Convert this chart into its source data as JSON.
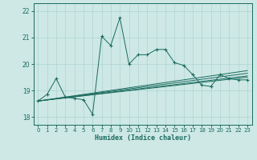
{
  "xlabel": "Humidex (Indice chaleur)",
  "bg_color": "#cde8e5",
  "line_color": "#1a6b5e",
  "grid_color": "#afd4d0",
  "xlim": [
    -0.5,
    23.5
  ],
  "ylim": [
    17.7,
    22.3
  ],
  "yticks": [
    18,
    19,
    20,
    21,
    22
  ],
  "xticks": [
    0,
    1,
    2,
    3,
    4,
    5,
    6,
    7,
    8,
    9,
    10,
    11,
    12,
    13,
    14,
    15,
    16,
    17,
    18,
    19,
    20,
    21,
    22,
    23
  ],
  "main_series": [
    18.6,
    18.85,
    19.45,
    18.75,
    18.7,
    18.65,
    18.1,
    21.05,
    20.7,
    21.75,
    20.0,
    20.35,
    20.35,
    20.55,
    20.55,
    20.05,
    19.95,
    19.6,
    19.2,
    19.15,
    19.6,
    19.45,
    19.4,
    19.4
  ],
  "trend_lines": [
    [
      [
        0,
        18.6
      ],
      [
        23,
        19.5
      ]
    ],
    [
      [
        0,
        18.6
      ],
      [
        23,
        19.55
      ]
    ],
    [
      [
        0,
        18.6
      ],
      [
        23,
        19.65
      ]
    ],
    [
      [
        0,
        18.6
      ],
      [
        23,
        19.75
      ]
    ]
  ]
}
